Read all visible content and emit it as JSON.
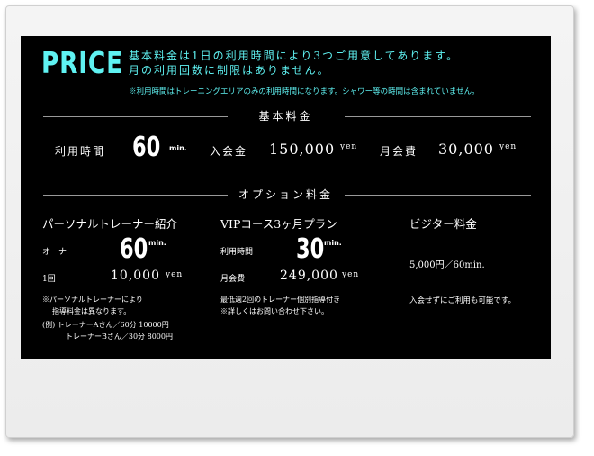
{
  "header": {
    "title": "PRICE",
    "intro_line1": "基本料金は1日の利用時間により3つご用意してあります。",
    "intro_line2": "月の利用回数に制限はありません。",
    "note": "※利用時間はトレーニングエリアのみの利用時間になります。シャワー等の時間は含まれていません。"
  },
  "basic": {
    "heading": "基本料金",
    "time_label": "利用時間",
    "time_value": "60",
    "time_unit": "min.",
    "entry_label": "入会金",
    "entry_value": "150,000",
    "entry_unit": "yen",
    "monthly_label": "月会費",
    "monthly_value": "30,000",
    "monthly_unit": "yen"
  },
  "option": {
    "heading": "オプション料金",
    "personal": {
      "title": "パーソナルトレーナー紹介",
      "owner_label": "オーナー",
      "owner_value": "60",
      "owner_unit": "min.",
      "once_label": "1回",
      "once_value": "10,000",
      "once_unit": "yen",
      "note1": "※パーソナルトレーナーにより",
      "note2": "指導料金は異なります。",
      "example1": "(例) トレーナーAさん／60分 10000円",
      "example2": "トレーナーBさん／30分 8000円"
    },
    "vip": {
      "title": "VIPコース3ヶ月プラン",
      "time_label": "利用時間",
      "time_value": "30",
      "time_unit": "min.",
      "monthly_label": "月会費",
      "monthly_value": "249,000",
      "monthly_unit": "yen",
      "note1": "最低週2回のトレーナー個別指導付き",
      "note2": "※詳しくはお問い合わせ下さい。"
    },
    "visitor": {
      "title": "ビジター料金",
      "price": "5,000円／60min.",
      "note": "入会せずにご利用も可能です。"
    }
  },
  "colors": {
    "accent": "#5ff2f2",
    "panel": "#000000"
  }
}
